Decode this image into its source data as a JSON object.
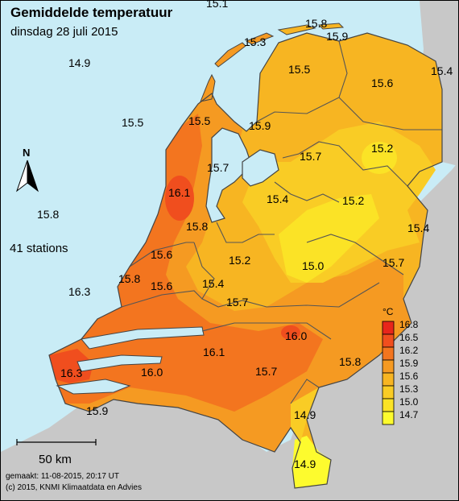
{
  "title": "Gemiddelde temperatuur",
  "subtitle": "dinsdag 28 juli 2015",
  "station_count_label": "41 stations",
  "north_label": "N",
  "scale_label": "50 km",
  "footer_made": "gemaakt: 11-08-2015, 20:17 UT",
  "footer_copyright": "(c) 2015, KNMI Klimaatdata en Advies",
  "legend": {
    "unit": "°C",
    "ticks": [
      "16.8",
      "16.5",
      "16.2",
      "15.9",
      "15.6",
      "15.3",
      "15.0",
      "14.7"
    ],
    "colors": [
      "#e8261b",
      "#f04e1e",
      "#f3751f",
      "#f59a22",
      "#f7b522",
      "#f9cc25",
      "#fbe326",
      "#fdfb2e"
    ]
  },
  "colors": {
    "sea": "#c9ecf6",
    "land_outside": "#c8c8c8",
    "base_fill": "#f7b522",
    "border": "#444444"
  },
  "station_values": [
    {
      "id": "s01",
      "value": "15.1"
    },
    {
      "id": "s02",
      "value": "15.8"
    },
    {
      "id": "s03",
      "value": "15.9"
    },
    {
      "id": "s04",
      "value": "15.3"
    },
    {
      "id": "s05",
      "value": "14.9"
    },
    {
      "id": "s06",
      "value": "15.5"
    },
    {
      "id": "s07",
      "value": "15.4"
    },
    {
      "id": "s08",
      "value": "15.6"
    },
    {
      "id": "s09",
      "value": "15.5"
    },
    {
      "id": "s10",
      "value": "15.5"
    },
    {
      "id": "s11",
      "value": "15.9"
    },
    {
      "id": "s12",
      "value": "15.2"
    },
    {
      "id": "s13",
      "value": "15.7"
    },
    {
      "id": "s14",
      "value": "15.7"
    },
    {
      "id": "s15",
      "value": "16.1"
    },
    {
      "id": "s16",
      "value": "15.4"
    },
    {
      "id": "s17",
      "value": "15.2"
    },
    {
      "id": "s18",
      "value": "15.8"
    },
    {
      "id": "s19",
      "value": "15.8"
    },
    {
      "id": "s20",
      "value": "15.4"
    },
    {
      "id": "s21",
      "value": "15.6"
    },
    {
      "id": "s22",
      "value": "15.2"
    },
    {
      "id": "s23",
      "value": "15.0"
    },
    {
      "id": "s24",
      "value": "15.7"
    },
    {
      "id": "s25",
      "value": "16.3"
    },
    {
      "id": "s26",
      "value": "15.8"
    },
    {
      "id": "s27",
      "value": "15.6"
    },
    {
      "id": "s28",
      "value": "15.4"
    },
    {
      "id": "s29",
      "value": "15.7"
    },
    {
      "id": "s30",
      "value": "16.0"
    },
    {
      "id": "s31",
      "value": "16.1"
    },
    {
      "id": "s32",
      "value": "15.8"
    },
    {
      "id": "s33",
      "value": "16.3"
    },
    {
      "id": "s34",
      "value": "16.0"
    },
    {
      "id": "s35",
      "value": "15.7"
    },
    {
      "id": "s36",
      "value": "15.9"
    },
    {
      "id": "s37",
      "value": "14.9"
    },
    {
      "id": "s38",
      "value": "14.9"
    }
  ]
}
